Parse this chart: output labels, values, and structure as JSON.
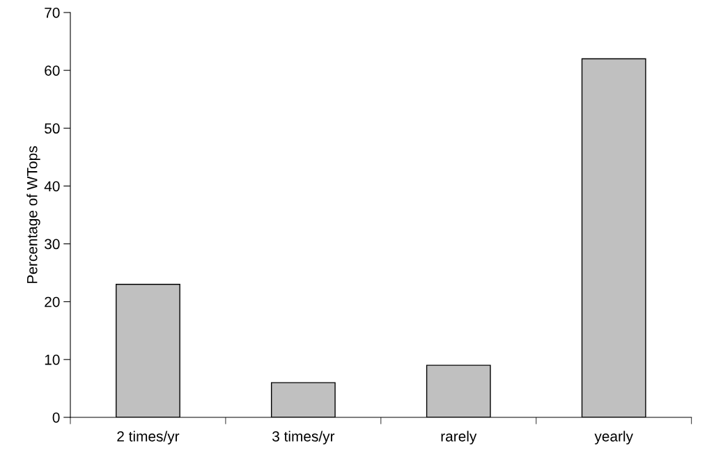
{
  "chart_data": {
    "type": "bar",
    "ylabel": "Percentage of WTops",
    "categories": [
      "2 times/yr",
      "3 times/yr",
      "rarely",
      "yearly"
    ],
    "values": [
      23,
      6,
      9,
      62
    ],
    "color": "#c0c0c0",
    "ylim": [
      0,
      70
    ],
    "yticks": [
      0,
      10,
      20,
      30,
      40,
      50,
      60,
      70
    ],
    "grid": false
  }
}
